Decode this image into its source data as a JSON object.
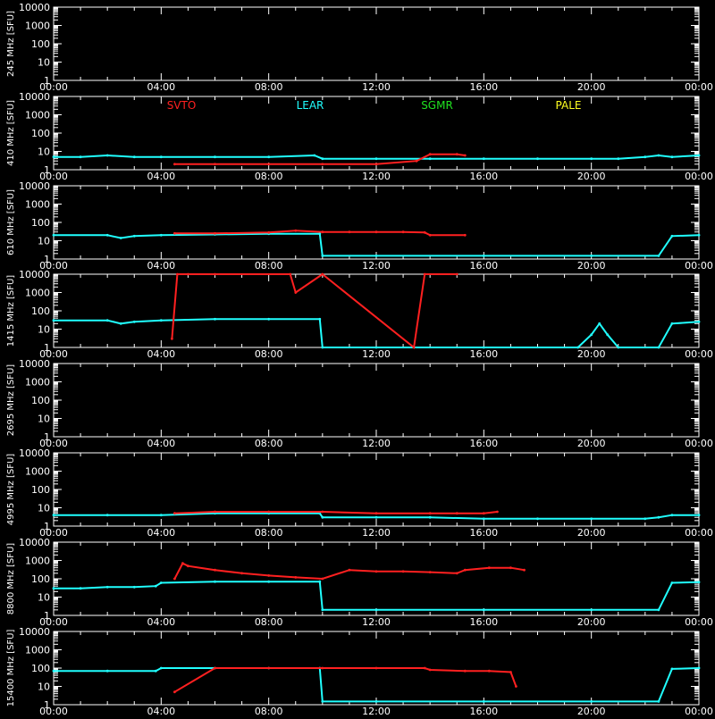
{
  "colors": {
    "background": "#000000",
    "axes": "#ffffff",
    "SVTO": "#ff2020",
    "LEAR": "#20ffff",
    "SGMR": "#20e020",
    "PALE": "#ffff20"
  },
  "x_tick_labels": [
    "00:00",
    "04:00",
    "08:00",
    "12:00",
    "16:00",
    "20:00",
    "00:00"
  ],
  "y_tick_labels": [
    "1",
    "10",
    "100",
    "1000",
    "10000"
  ],
  "legend": [
    {
      "name": "SVTO",
      "color": "#ff2020"
    },
    {
      "name": "LEAR",
      "color": "#20ffff"
    },
    {
      "name": "SGMR",
      "color": "#20e020"
    },
    {
      "name": "PALE",
      "color": "#ffff20"
    }
  ],
  "chart_data": [
    {
      "type": "line",
      "ylabel": "245 MHz [SFU]",
      "yscale": "log",
      "ylim": [
        1,
        10000
      ],
      "xlim_hours": [
        0,
        24
      ],
      "grid": false,
      "series": []
    },
    {
      "type": "line",
      "ylabel": "410 MHz [SFU]",
      "yscale": "log",
      "ylim": [
        1,
        10000
      ],
      "xlim_hours": [
        0,
        24
      ],
      "grid": false,
      "legend_position": "top",
      "series": [
        {
          "name": "LEAR",
          "x": [
            0,
            1,
            2,
            3,
            4,
            6,
            8,
            9.7,
            10,
            12,
            14,
            16,
            18,
            20,
            21,
            22,
            22.5,
            23,
            24
          ],
          "y": [
            5,
            5,
            6,
            5,
            5,
            5,
            5,
            6,
            4,
            4,
            4,
            4,
            4,
            4,
            4,
            5,
            6,
            5,
            6
          ]
        },
        {
          "name": "SVTO",
          "x": [
            4.5,
            6,
            8,
            10,
            12,
            13.5,
            14,
            15,
            15.3
          ],
          "y": [
            2,
            2,
            2,
            2,
            2,
            3,
            7,
            7,
            6
          ]
        }
      ]
    },
    {
      "type": "line",
      "ylabel": "610 MHz [SFU]",
      "yscale": "log",
      "ylim": [
        1,
        10000
      ],
      "xlim_hours": [
        0,
        24
      ],
      "grid": false,
      "series": [
        {
          "name": "LEAR",
          "x": [
            0,
            2,
            2.5,
            3,
            4,
            6,
            8,
            9.9,
            10,
            12,
            16,
            20,
            22.5,
            23,
            24
          ],
          "y": [
            20,
            20,
            14,
            18,
            20,
            22,
            24,
            24,
            1.5,
            1.5,
            1.5,
            1.5,
            1.5,
            18,
            20
          ]
        },
        {
          "name": "SVTO",
          "x": [
            4.5,
            6,
            8,
            9,
            10,
            11,
            12,
            13,
            13.8,
            14,
            15.3
          ],
          "y": [
            25,
            25,
            28,
            35,
            30,
            30,
            30,
            30,
            28,
            20,
            20
          ]
        }
      ]
    },
    {
      "type": "line",
      "ylabel": "1415 MHz [SFU]",
      "yscale": "log",
      "ylim": [
        1,
        10000
      ],
      "xlim_hours": [
        0,
        24
      ],
      "grid": false,
      "series": [
        {
          "name": "LEAR",
          "x": [
            0,
            2,
            2.5,
            3,
            4,
            6,
            8,
            9.9,
            10,
            12,
            16,
            19.5,
            20,
            20.3,
            20.6,
            21,
            22.5,
            23,
            24
          ],
          "y": [
            30,
            30,
            20,
            25,
            30,
            35,
            35,
            35,
            1,
            1,
            1,
            1,
            5,
            20,
            5,
            1,
            1,
            20,
            25
          ]
        },
        {
          "name": "SVTO",
          "x": [
            4.4,
            4.6,
            5,
            6,
            8.8,
            9,
            10,
            13.4,
            13.8,
            15
          ],
          "y": [
            3,
            10000,
            10000,
            10000,
            10000,
            1000,
            10000,
            1,
            10000,
            10000
          ]
        }
      ]
    },
    {
      "type": "line",
      "ylabel": "2695 MHz [SFU]",
      "yscale": "log",
      "ylim": [
        1,
        10000
      ],
      "xlim_hours": [
        0,
        24
      ],
      "grid": false,
      "series": []
    },
    {
      "type": "line",
      "ylabel": "4995 MHz [SFU]",
      "yscale": "log",
      "ylim": [
        1,
        10000
      ],
      "xlim_hours": [
        0,
        24
      ],
      "grid": false,
      "series": [
        {
          "name": "LEAR",
          "x": [
            0,
            2,
            4,
            6,
            8,
            9.9,
            10,
            12,
            14,
            16,
            18,
            20,
            22,
            22.5,
            23,
            24
          ],
          "y": [
            4,
            4,
            4,
            5,
            5,
            5,
            3,
            3,
            3,
            2.5,
            2.5,
            2.5,
            2.5,
            3,
            4,
            4
          ]
        },
        {
          "name": "SVTO",
          "x": [
            4.5,
            6,
            8,
            10,
            12,
            14,
            15,
            16,
            16.5
          ],
          "y": [
            5,
            6,
            6,
            6,
            5,
            5,
            5,
            5,
            6
          ]
        }
      ]
    },
    {
      "type": "line",
      "ylabel": "8800 MHz [SFU]",
      "yscale": "log",
      "ylim": [
        1,
        10000
      ],
      "xlim_hours": [
        0,
        24
      ],
      "grid": false,
      "series": [
        {
          "name": "LEAR",
          "x": [
            0,
            1,
            2,
            3,
            3.8,
            4,
            6,
            8,
            9.9,
            10,
            12,
            16,
            20,
            22.5,
            23,
            24
          ],
          "y": [
            30,
            30,
            35,
            35,
            40,
            60,
            70,
            70,
            70,
            2,
            2,
            2,
            2,
            2,
            60,
            65
          ]
        },
        {
          "name": "SVTO",
          "x": [
            4.5,
            4.8,
            5,
            6,
            7,
            8,
            9,
            10,
            11,
            12,
            13,
            14,
            15,
            15.3,
            16.2,
            17,
            17.5
          ],
          "y": [
            100,
            700,
            500,
            300,
            200,
            150,
            120,
            100,
            300,
            250,
            250,
            230,
            200,
            300,
            400,
            400,
            300
          ]
        }
      ]
    },
    {
      "type": "line",
      "ylabel": "15400 MHz [SFU]",
      "yscale": "log",
      "ylim": [
        1,
        10000
      ],
      "xlim_hours": [
        0,
        24
      ],
      "grid": false,
      "series": [
        {
          "name": "LEAR",
          "x": [
            0,
            2,
            3.8,
            4,
            6,
            8,
            9.9,
            10,
            12,
            16,
            20,
            22.5,
            23,
            24
          ],
          "y": [
            70,
            70,
            70,
            100,
            100,
            100,
            100,
            1.5,
            1.5,
            1.5,
            1.5,
            1.5,
            90,
            100
          ]
        },
        {
          "name": "SVTO",
          "x": [
            4.5,
            6,
            8,
            10,
            12,
            13.8,
            14,
            15.3,
            16.2,
            17,
            17.2
          ],
          "y": [
            5,
            100,
            100,
            100,
            100,
            100,
            80,
            70,
            70,
            60,
            10
          ]
        }
      ]
    }
  ]
}
